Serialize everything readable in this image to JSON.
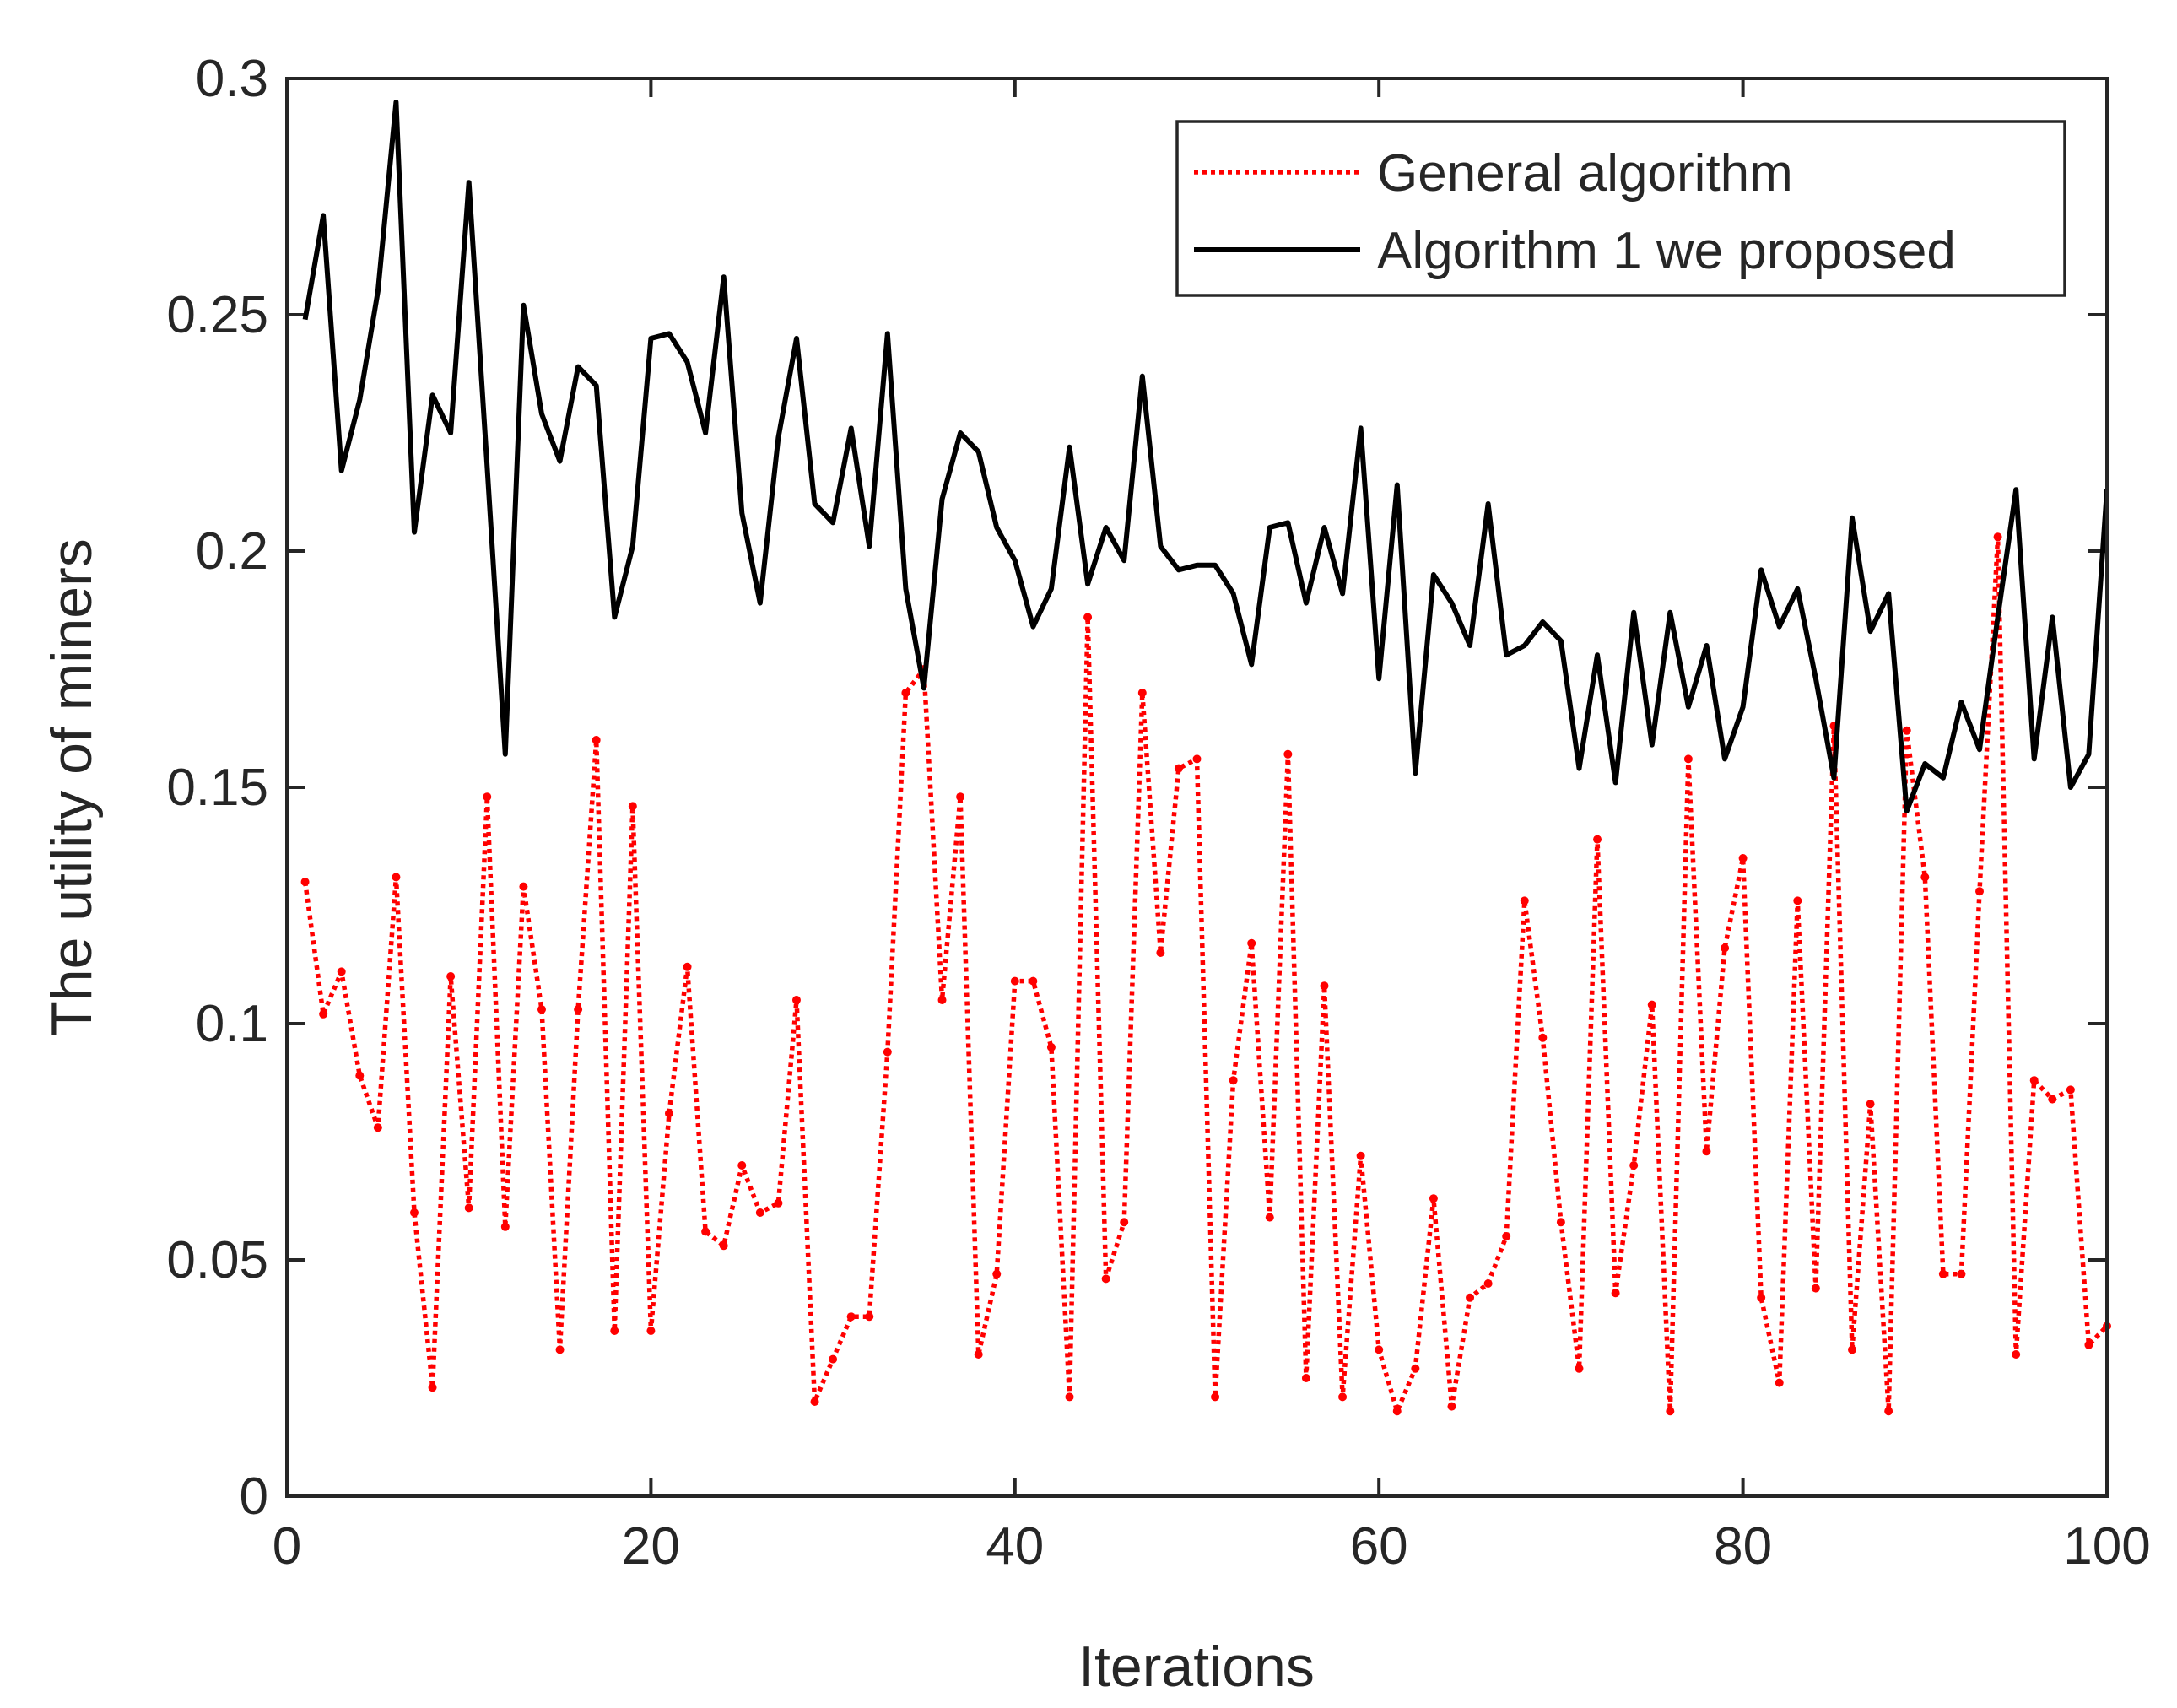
{
  "chart_data": {
    "type": "line",
    "title": "",
    "xlabel": "Iterations",
    "ylabel": "The utility of miners",
    "xlim": [
      0,
      100
    ],
    "ylim": [
      0,
      0.3
    ],
    "xticks": [
      0,
      20,
      40,
      60,
      80,
      100
    ],
    "xtick_labels": [
      "0",
      "20",
      "40",
      "60",
      "80",
      "100"
    ],
    "yticks": [
      0,
      0.05,
      0.1,
      0.15,
      0.2,
      0.25,
      0.3
    ],
    "ytick_labels": [
      "0",
      "0.05",
      "0.1",
      "0.15",
      "0.2",
      "0.25",
      "0.3"
    ],
    "grid": false,
    "legend_position": "top-right",
    "x": [
      1,
      2,
      3,
      4,
      5,
      6,
      7,
      8,
      9,
      10,
      11,
      12,
      13,
      14,
      15,
      16,
      17,
      18,
      19,
      20,
      21,
      22,
      23,
      24,
      25,
      26,
      27,
      28,
      29,
      30,
      31,
      32,
      33,
      34,
      35,
      36,
      37,
      38,
      39,
      40,
      41,
      42,
      43,
      44,
      45,
      46,
      47,
      48,
      49,
      50,
      51,
      52,
      53,
      54,
      55,
      56,
      57,
      58,
      59,
      60,
      61,
      62,
      63,
      64,
      65,
      66,
      67,
      68,
      69,
      70,
      71,
      72,
      73,
      74,
      75,
      76,
      77,
      78,
      79,
      80,
      81,
      82,
      83,
      84,
      85,
      86,
      87,
      88,
      89,
      90,
      91,
      92,
      93,
      94,
      95,
      96,
      97,
      98,
      99,
      100
    ],
    "series": [
      {
        "name": "General algorithm",
        "color": "#ff0000",
        "style": "dotted",
        "values": [
          0.13,
          0.102,
          0.111,
          0.089,
          0.078,
          0.131,
          0.06,
          0.023,
          0.11,
          0.061,
          0.148,
          0.057,
          0.129,
          0.103,
          0.031,
          0.103,
          0.16,
          0.035,
          0.146,
          0.035,
          0.081,
          0.112,
          0.056,
          0.053,
          0.07,
          0.06,
          0.062,
          0.105,
          0.02,
          0.029,
          0.038,
          0.038,
          0.094,
          0.17,
          0.175,
          0.105,
          0.148,
          0.03,
          0.047,
          0.109,
          0.109,
          0.095,
          0.021,
          0.186,
          0.046,
          0.058,
          0.17,
          0.115,
          0.154,
          0.156,
          0.021,
          0.088,
          0.117,
          0.059,
          0.157,
          0.025,
          0.108,
          0.021,
          0.072,
          0.031,
          0.018,
          0.027,
          0.063,
          0.019,
          0.042,
          0.045,
          0.055,
          0.126,
          0.097,
          0.058,
          0.027,
          0.139,
          0.043,
          0.07,
          0.104,
          0.018,
          0.156,
          0.073,
          0.116,
          0.135,
          0.042,
          0.024,
          0.126,
          0.044,
          0.163,
          0.031,
          0.083,
          0.018,
          0.162,
          0.131,
          0.047,
          0.047,
          0.128,
          0.203,
          0.03,
          0.088,
          0.084,
          0.086,
          0.032,
          0.036
        ]
      },
      {
        "name": "Algorithm 1 we proposed",
        "color": "#000000",
        "style": "solid",
        "values": [
          0.249,
          0.271,
          0.217,
          0.232,
          0.255,
          0.295,
          0.204,
          0.233,
          0.225,
          0.278,
          0.218,
          0.157,
          0.252,
          0.229,
          0.219,
          0.239,
          0.235,
          0.186,
          0.201,
          0.245,
          0.246,
          0.24,
          0.225,
          0.258,
          0.208,
          0.189,
          0.224,
          0.245,
          0.21,
          0.206,
          0.226,
          0.201,
          0.246,
          0.192,
          0.171,
          0.211,
          0.225,
          0.221,
          0.205,
          0.198,
          0.184,
          0.192,
          0.222,
          0.193,
          0.205,
          0.198,
          0.237,
          0.201,
          0.196,
          0.197,
          0.197,
          0.191,
          0.176,
          0.205,
          0.206,
          0.189,
          0.205,
          0.191,
          0.226,
          0.173,
          0.214,
          0.153,
          0.195,
          0.189,
          0.18,
          0.21,
          0.178,
          0.18,
          0.185,
          0.181,
          0.154,
          0.178,
          0.151,
          0.187,
          0.159,
          0.187,
          0.167,
          0.18,
          0.156,
          0.167,
          0.196,
          0.184,
          0.192,
          0.173,
          0.152,
          0.207,
          0.183,
          0.191,
          0.145,
          0.155,
          0.152,
          0.168,
          0.158,
          0.186,
          0.213,
          0.156,
          0.186,
          0.15,
          0.157,
          0.213
        ]
      }
    ]
  }
}
